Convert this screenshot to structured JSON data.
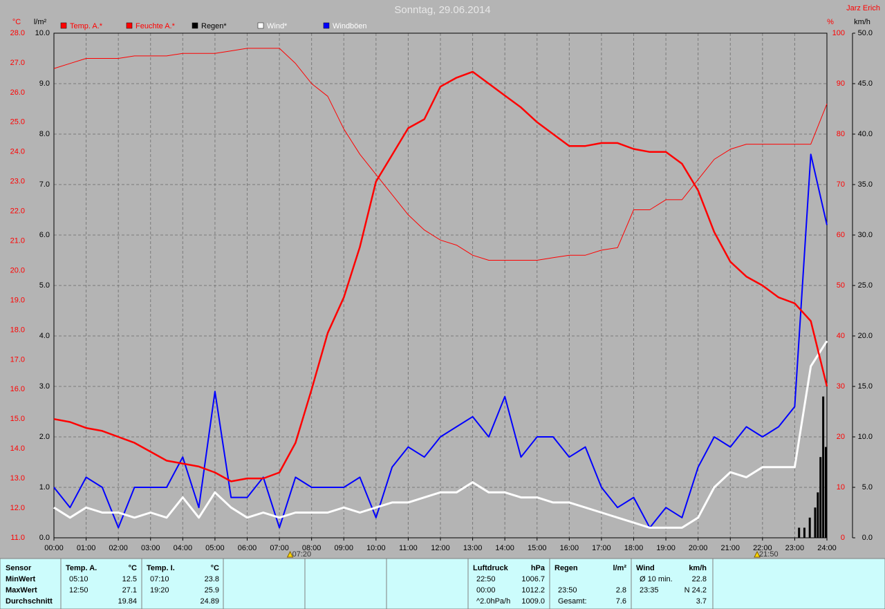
{
  "chart_data": {
    "type": "line",
    "title": "Sonntag, 29.06.2014",
    "author": "Jarz Erich",
    "units": {
      "temp": "°C",
      "rain": "l/m²",
      "humidity": "%",
      "wind": "km/h"
    },
    "annotations": [
      {
        "x": 7.333,
        "label": "07:20"
      },
      {
        "x": 21.833,
        "label": "21:50"
      }
    ],
    "xlim": [
      0,
      24
    ],
    "xticks": [
      {
        "value": 0,
        "label": "00:00"
      },
      {
        "value": 1,
        "label": "01:00"
      },
      {
        "value": 2,
        "label": "02:00"
      },
      {
        "value": 3,
        "label": "03:00"
      },
      {
        "value": 4,
        "label": "04:00"
      },
      {
        "value": 5,
        "label": "05:00"
      },
      {
        "value": 6,
        "label": "06:00"
      },
      {
        "value": 7,
        "label": "07:00"
      },
      {
        "value": 8,
        "label": "08:00"
      },
      {
        "value": 9,
        "label": "09:00"
      },
      {
        "value": 10,
        "label": "10:00"
      },
      {
        "value": 11,
        "label": "11:00"
      },
      {
        "value": 12,
        "label": "12:00"
      },
      {
        "value": 13,
        "label": "13:00"
      },
      {
        "value": 14,
        "label": "14:00"
      },
      {
        "value": 15,
        "label": "15:00"
      },
      {
        "value": 16,
        "label": "16:00"
      },
      {
        "value": 17,
        "label": "17:00"
      },
      {
        "value": 18,
        "label": "18:00"
      },
      {
        "value": 19,
        "label": "19:00"
      },
      {
        "value": 20,
        "label": "20:00"
      },
      {
        "value": 21,
        "label": "21:00"
      },
      {
        "value": 22,
        "label": "22:00"
      },
      {
        "value": 23,
        "label": "23:00"
      },
      {
        "value": 24,
        "label": "24:00"
      }
    ],
    "ylim": [
      11,
      28
    ],
    "yticks": [
      {
        "value": 11,
        "label": "11.0"
      },
      {
        "value": 12,
        "label": "12.0"
      },
      {
        "value": 13,
        "label": "13.0"
      },
      {
        "value": 14,
        "label": "14.0"
      },
      {
        "value": 15,
        "label": "15.0"
      },
      {
        "value": 16,
        "label": "16.0"
      },
      {
        "value": 17,
        "label": "17.0"
      },
      {
        "value": 18,
        "label": "18.0"
      },
      {
        "value": 19,
        "label": "19.0"
      },
      {
        "value": 20,
        "label": "20.0"
      },
      {
        "value": 21,
        "label": "21.0"
      },
      {
        "value": 22,
        "label": "22.0"
      },
      {
        "value": 23,
        "label": "23.0"
      },
      {
        "value": 24,
        "label": "24.0"
      },
      {
        "value": 25,
        "label": "25.0"
      },
      {
        "value": 26,
        "label": "26.0"
      },
      {
        "value": 27,
        "label": "27.0"
      },
      {
        "value": 28,
        "label": "28.0"
      }
    ],
    "ylim_rain": [
      0,
      10
    ],
    "yticks_rain": [
      {
        "value": 0,
        "label": "0.0"
      },
      {
        "value": 1,
        "label": "1.0"
      },
      {
        "value": 2,
        "label": "2.0"
      },
      {
        "value": 3,
        "label": "3.0"
      },
      {
        "value": 4,
        "label": "4.0"
      },
      {
        "value": 5,
        "label": "5.0"
      },
      {
        "value": 6,
        "label": "6.0"
      },
      {
        "value": 7,
        "label": "7.0"
      },
      {
        "value": 8,
        "label": "8.0"
      },
      {
        "value": 9,
        "label": "9.0"
      },
      {
        "value": 10,
        "label": "10.0"
      }
    ],
    "ylim_humidity": [
      0,
      100
    ],
    "yticks_humidity": [
      0,
      10,
      20,
      30,
      40,
      50,
      60,
      70,
      80,
      90,
      100
    ],
    "ylim_wind": [
      0,
      50
    ],
    "yticks_wind": [
      {
        "value": 0,
        "label": "0.0"
      },
      {
        "value": 5,
        "label": "5.0"
      },
      {
        "value": 10,
        "label": "10.0"
      },
      {
        "value": 15,
        "label": "15.0"
      },
      {
        "value": 20,
        "label": "20.0"
      },
      {
        "value": 25,
        "label": "25.0"
      },
      {
        "value": 30,
        "label": "30.0"
      },
      {
        "value": 35,
        "label": "35.0"
      },
      {
        "value": 40,
        "label": "40.0"
      },
      {
        "value": 45,
        "label": "45.0"
      },
      {
        "value": 50,
        "label": "50.0"
      }
    ],
    "grid": true,
    "x": [
      0,
      0.5,
      1,
      1.5,
      2,
      2.5,
      3,
      3.5,
      4,
      4.5,
      5,
      5.5,
      6,
      6.5,
      7,
      7.5,
      8,
      8.5,
      9,
      9.5,
      10,
      10.5,
      11,
      11.5,
      12,
      12.5,
      13,
      13.5,
      14,
      14.5,
      15,
      15.5,
      16,
      16.5,
      17,
      17.5,
      18,
      18.5,
      19,
      19.5,
      20,
      20.5,
      21,
      21.5,
      22,
      22.5,
      23,
      23.5,
      24
    ],
    "series": [
      {
        "name": "Temp. A.*",
        "color": "#ff0000",
        "axis": "temp",
        "width": 2.5,
        "values": [
          15.0,
          14.9,
          14.7,
          14.6,
          14.4,
          14.2,
          13.9,
          13.6,
          13.5,
          13.4,
          13.2,
          12.9,
          13.0,
          13.0,
          13.2,
          14.2,
          16.0,
          17.9,
          19.1,
          20.8,
          23.0,
          23.9,
          24.8,
          25.1,
          26.2,
          26.5,
          26.7,
          26.3,
          25.9,
          25.5,
          25.0,
          24.6,
          24.2,
          24.2,
          24.3,
          24.3,
          24.1,
          24.0,
          24.0,
          23.6,
          22.7,
          21.3,
          20.3,
          19.8,
          19.5,
          19.1,
          18.9,
          18.3,
          16.1
        ]
      },
      {
        "name": "Feuchte A.*",
        "color": "#ff0000",
        "axis": "humidity",
        "width": 1,
        "values": [
          93,
          94,
          95,
          95,
          95,
          95.5,
          95.5,
          95.5,
          96,
          96,
          96,
          96.5,
          97,
          97,
          97,
          94,
          90,
          87.5,
          81,
          76,
          72,
          68,
          64,
          61,
          59,
          58,
          56,
          55,
          55,
          55,
          55,
          55.5,
          56,
          56,
          57,
          57.5,
          65,
          65,
          67,
          67,
          71,
          75,
          77,
          78,
          78,
          78,
          78,
          78,
          86
        ]
      },
      {
        "name": "Regen*",
        "color": "#000000",
        "axis": "rain",
        "kind": "bars",
        "x": [
          23.167,
          23.333,
          23.5,
          23.667,
          23.75,
          23.833,
          23.917,
          24
        ],
        "values": [
          0.2,
          0.2,
          0.4,
          0.6,
          0.9,
          1.6,
          2.8,
          1.8
        ]
      },
      {
        "name": "Wind*",
        "color": "#ffffff",
        "axis": "wind",
        "width": 3,
        "values": [
          3,
          2,
          3,
          2.5,
          2.5,
          2,
          2.5,
          2,
          4,
          2,
          4.5,
          3,
          2,
          2.5,
          2,
          2.5,
          2.5,
          2.5,
          3,
          2.5,
          3,
          3.5,
          3.5,
          4,
          4.5,
          4.5,
          5.5,
          4.5,
          4.5,
          4,
          4,
          3.5,
          3.5,
          3,
          2.5,
          2,
          1.5,
          1,
          1,
          1,
          2,
          5,
          6.5,
          6,
          7,
          7,
          7,
          17,
          19.5
        ]
      },
      {
        "name": "Windböen",
        "color": "#0000ff",
        "axis": "wind",
        "width": 2,
        "values": [
          5,
          3,
          6,
          5,
          1,
          5,
          5,
          5,
          8,
          3,
          14.5,
          4,
          4,
          6,
          1,
          6,
          5,
          5,
          5,
          6,
          2,
          7,
          9,
          8,
          10,
          11,
          12,
          10,
          14,
          8,
          10,
          10,
          8,
          9,
          5,
          3,
          4,
          1,
          3,
          2,
          7,
          10,
          9,
          11,
          10,
          11,
          13,
          38,
          31
        ]
      }
    ]
  },
  "table": {
    "header": [
      "Sensor",
      "Temp. A.",
      "°C",
      "Temp. I.",
      "°C",
      "Luftdruck",
      "hPa",
      "Regen",
      "l/m²",
      "Wind",
      "km/h"
    ],
    "rows": [
      [
        "MinWert",
        "05:10",
        "12.5",
        "07:10",
        "23.8",
        "22:50",
        "1006.7",
        null,
        null,
        "Ø 10 min.",
        "22.8"
      ],
      [
        "MaxWert",
        "12:50",
        "27.1",
        "19:20",
        "25.9",
        "00:00",
        "1012.2",
        "23:50",
        "2.8",
        "23:35",
        "N 24.2"
      ],
      [
        "Durchschnitt",
        null,
        "19.84",
        null,
        "24.89",
        "^2.0hPa/h",
        "1009.0",
        "Gesamt:",
        "7.6",
        null,
        "3.7"
      ]
    ]
  }
}
